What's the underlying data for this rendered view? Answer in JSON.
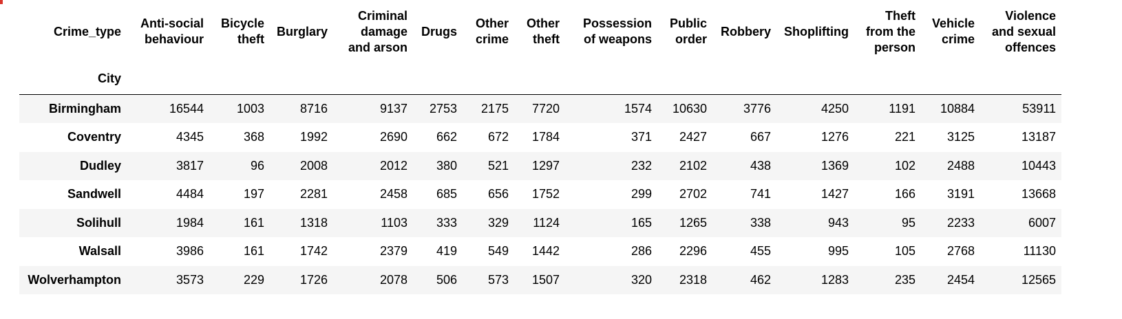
{
  "table": {
    "columns_header": "Crime_type",
    "index_header": "City",
    "columns": [
      "Anti-social behaviour",
      "Bicycle theft",
      "Burglary",
      "Criminal damage and arson",
      "Drugs",
      "Other crime",
      "Other theft",
      "Possession of weapons",
      "Public order",
      "Robbery",
      "Shoplifting",
      "Theft from the person",
      "Vehicle crime",
      "Violence and sexual offences"
    ],
    "rows": [
      {
        "city": "Birmingham",
        "values": [
          "16544",
          "1003",
          "8716",
          "9137",
          "2753",
          "2175",
          "7720",
          "1574",
          "10630",
          "3776",
          "4250",
          "1191",
          "10884",
          "53911"
        ]
      },
      {
        "city": "Coventry",
        "values": [
          "4345",
          "368",
          "1992",
          "2690",
          "662",
          "672",
          "1784",
          "371",
          "2427",
          "667",
          "1276",
          "221",
          "3125",
          "13187"
        ]
      },
      {
        "city": "Dudley",
        "values": [
          "3817",
          "96",
          "2008",
          "2012",
          "380",
          "521",
          "1297",
          "232",
          "2102",
          "438",
          "1369",
          "102",
          "2488",
          "10443"
        ]
      },
      {
        "city": "Sandwell",
        "values": [
          "4484",
          "197",
          "2281",
          "2458",
          "685",
          "656",
          "1752",
          "299",
          "2702",
          "741",
          "1427",
          "166",
          "3191",
          "13668"
        ]
      },
      {
        "city": "Solihull",
        "values": [
          "1984",
          "161",
          "1318",
          "1103",
          "333",
          "329",
          "1124",
          "165",
          "1265",
          "338",
          "943",
          "95",
          "2233",
          "6007"
        ]
      },
      {
        "city": "Walsall",
        "values": [
          "3986",
          "161",
          "1742",
          "2379",
          "419",
          "549",
          "1442",
          "286",
          "2296",
          "455",
          "995",
          "105",
          "2768",
          "11130"
        ]
      },
      {
        "city": "Wolverhampton",
        "values": [
          "3573",
          "229",
          "1726",
          "2078",
          "506",
          "573",
          "1507",
          "320",
          "2318",
          "462",
          "1283",
          "235",
          "2454",
          "12565"
        ]
      }
    ]
  }
}
